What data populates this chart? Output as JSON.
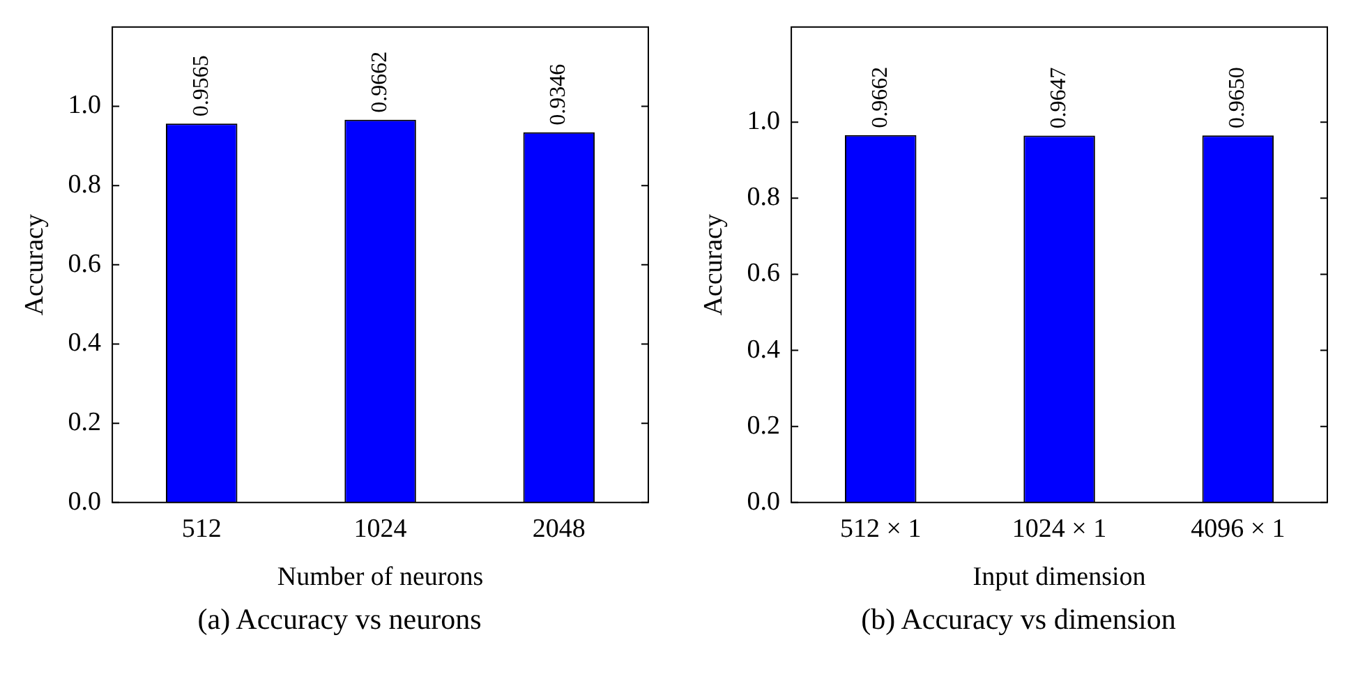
{
  "chart_data": [
    {
      "type": "bar",
      "categories": [
        "512",
        "1024",
        "2048"
      ],
      "values": [
        0.9565,
        0.9662,
        0.9346
      ],
      "color": "#0000ff",
      "xlabel": "Number of neurons",
      "ylabel": "Accuracy",
      "ylim": [
        0,
        1.2
      ],
      "yticks": [
        {
          "value": 0,
          "label": "0.0"
        },
        {
          "value": 0.2,
          "label": "0.2"
        },
        {
          "value": 0.4,
          "label": "0.4"
        },
        {
          "value": 0.6,
          "label": "0.6"
        },
        {
          "value": 0.8,
          "label": "0.8"
        },
        {
          "value": 1,
          "label": "1.0"
        }
      ],
      "data_labels": true,
      "grid": false,
      "annotations": [
        "(a) Accuracy vs neurons"
      ]
    },
    {
      "type": "bar",
      "categories": [
        "512 × 1",
        "1024 × 1",
        "4096 × 1"
      ],
      "values": [
        0.9662,
        0.9647,
        0.965
      ],
      "value_labels": [
        "0.9662",
        "0.9647",
        "0.9650"
      ],
      "color": "#0000ff",
      "xlabel": "Input dimension",
      "ylabel": "Accuracy",
      "ylim": [
        0,
        1.25
      ],
      "yticks": [
        {
          "value": 0,
          "label": "0.0"
        },
        {
          "value": 0.2,
          "label": "0.2"
        },
        {
          "value": 0.4,
          "label": "0.4"
        },
        {
          "value": 0.6,
          "label": "0.6"
        },
        {
          "value": 0.8,
          "label": "0.8"
        },
        {
          "value": 1,
          "label": "1.0"
        }
      ],
      "grid": false,
      "annotations": [
        "(b) Accuracy vs dimension"
      ]
    }
  ]
}
